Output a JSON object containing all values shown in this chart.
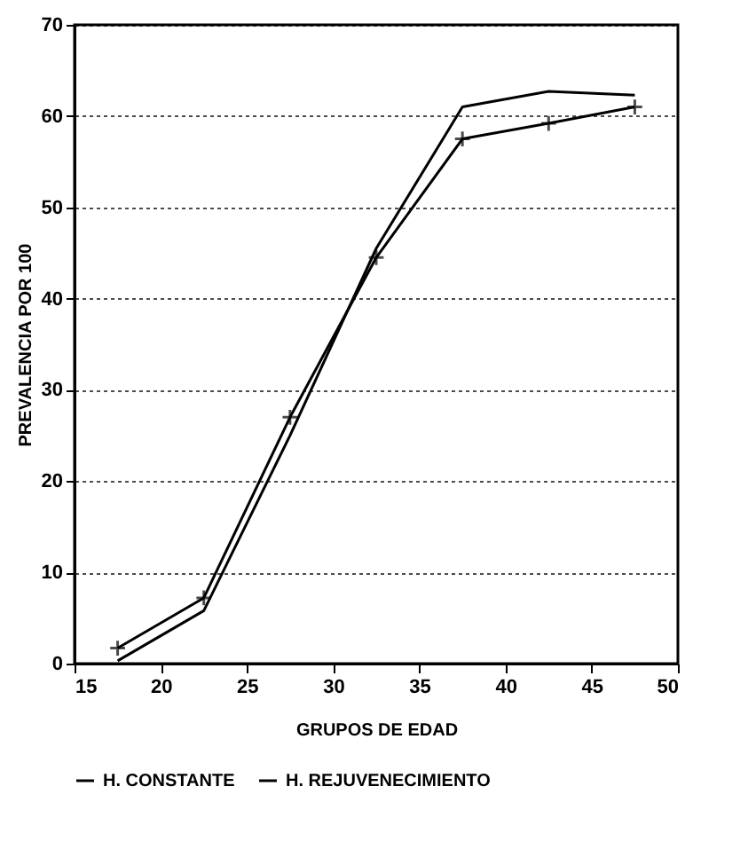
{
  "chart_data": {
    "type": "line",
    "xlabel": "GRUPOS DE EDAD",
    "ylabel": "PREVALENCIA POR 100",
    "x": [
      17.5,
      22.5,
      27.5,
      32.5,
      37.5,
      42.5,
      47.5
    ],
    "series": [
      {
        "name": "H. CONSTANTE",
        "color": "#000000",
        "marker": "none",
        "values": [
          0.3,
          5.8,
          25,
          45.5,
          61,
          62.7,
          62.3
        ]
      },
      {
        "name": "H. REJUVENECIMIENTO",
        "color": "#000000",
        "marker": "cross",
        "values": [
          1.7,
          7.2,
          27,
          44.5,
          57.5,
          59.2,
          61
        ]
      }
    ],
    "xlim": [
      15,
      50
    ],
    "xticks": [
      15,
      20,
      25,
      30,
      35,
      40,
      45,
      50
    ],
    "ylim": [
      0,
      70
    ],
    "yticks": [
      0,
      10,
      20,
      30,
      40,
      50,
      60,
      70
    ],
    "grid": "y",
    "legend": "bottom",
    "line_style": "solid"
  }
}
